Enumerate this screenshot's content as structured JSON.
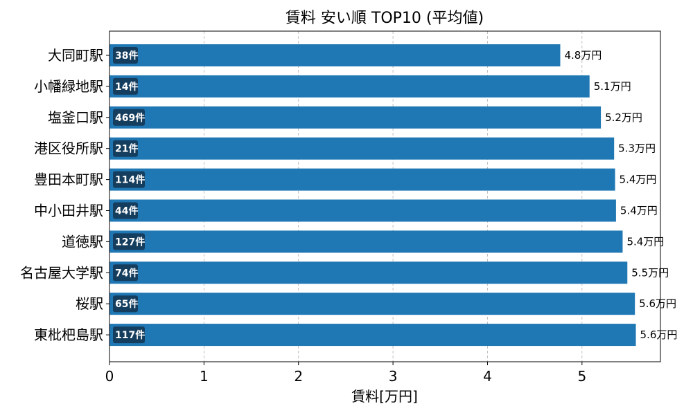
{
  "chart_data": {
    "type": "bar",
    "orientation": "horizontal",
    "title": "賃料 安い順 TOP10 (平均値)",
    "xlabel": "賃料[万円]",
    "ylabel": "",
    "xlim": [
      0,
      5.83
    ],
    "xticks": [
      0,
      1,
      2,
      3,
      4,
      5
    ],
    "grid": "x-dashed",
    "bar_color": "#1f77b4",
    "count_badge_color": "#143d5e",
    "categories": [
      "大同町駅",
      "小幡緑地駅",
      "塩釜口駅",
      "港区役所駅",
      "豊田本町駅",
      "中小田井駅",
      "道徳駅",
      "名古屋大学駅",
      "桜駅",
      "東枇杷島駅"
    ],
    "values": [
      4.77,
      5.08,
      5.2,
      5.34,
      5.35,
      5.36,
      5.43,
      5.48,
      5.56,
      5.57
    ],
    "value_labels": [
      "4.8万円",
      "5.1万円",
      "5.2万円",
      "5.3万円",
      "5.4万円",
      "5.4万円",
      "5.4万円",
      "5.5万円",
      "5.6万円",
      "5.6万円"
    ],
    "count_labels": [
      "38件",
      "14件",
      "469件",
      "21件",
      "114件",
      "44件",
      "127件",
      "74件",
      "65件",
      "117件"
    ]
  }
}
